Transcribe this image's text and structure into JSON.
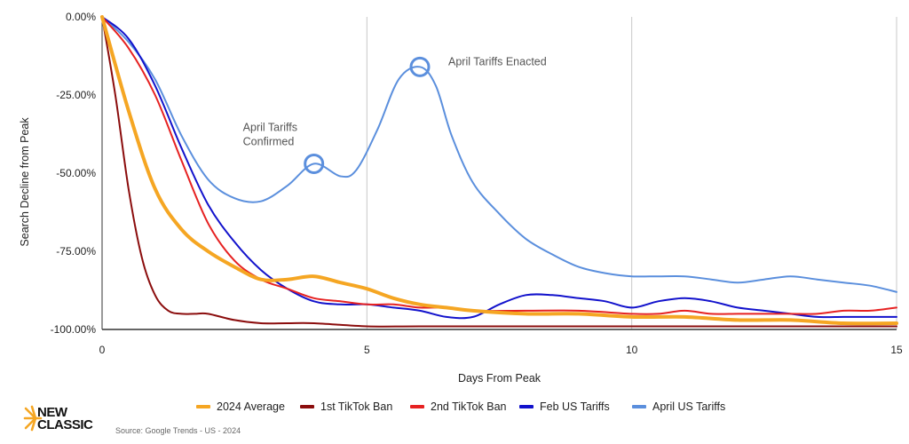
{
  "chart_data": {
    "type": "line",
    "title": "",
    "xlabel": "Days From Peak",
    "ylabel": "Search Decline from Peak",
    "xlim": [
      0,
      15
    ],
    "ylim": [
      -100,
      0
    ],
    "x_ticks": [
      0,
      5,
      10,
      15
    ],
    "y_ticks": [
      0,
      -25,
      -50,
      -75,
      -100
    ],
    "y_tick_labels": [
      "0.00%",
      "-25.00%",
      "-50.00%",
      "-75.00%",
      "-100.00%"
    ],
    "grid": "vertical",
    "legend": "bottom",
    "series": [
      {
        "name": "April US Tariffs",
        "color": "#5b8fdd",
        "width": 2,
        "points": [
          [
            0,
            0
          ],
          [
            0.5,
            -8
          ],
          [
            1,
            -20
          ],
          [
            1.5,
            -38
          ],
          [
            2,
            -52
          ],
          [
            2.5,
            -58
          ],
          [
            3,
            -59
          ],
          [
            3.5,
            -54
          ],
          [
            4,
            -47
          ],
          [
            4.5,
            -51
          ],
          [
            4.8,
            -49
          ],
          [
            5.2,
            -36
          ],
          [
            5.6,
            -20
          ],
          [
            6,
            -16
          ],
          [
            6.3,
            -22
          ],
          [
            6.6,
            -38
          ],
          [
            7,
            -53
          ],
          [
            7.5,
            -63
          ],
          [
            8,
            -71
          ],
          [
            8.5,
            -76
          ],
          [
            9,
            -80
          ],
          [
            9.5,
            -82
          ],
          [
            10,
            -83
          ],
          [
            10.5,
            -83
          ],
          [
            11,
            -83
          ],
          [
            11.5,
            -84
          ],
          [
            12,
            -85
          ],
          [
            12.5,
            -84
          ],
          [
            13,
            -83
          ],
          [
            13.5,
            -84
          ],
          [
            14,
            -85
          ],
          [
            14.5,
            -86
          ],
          [
            15,
            -88
          ]
        ]
      },
      {
        "name": "Feb US Tariffs",
        "color": "#1212cc",
        "width": 2,
        "points": [
          [
            0,
            0
          ],
          [
            0.5,
            -7
          ],
          [
            1,
            -22
          ],
          [
            1.5,
            -42
          ],
          [
            2,
            -60
          ],
          [
            2.5,
            -72
          ],
          [
            3,
            -81
          ],
          [
            3.5,
            -87
          ],
          [
            4,
            -91
          ],
          [
            4.5,
            -92
          ],
          [
            5,
            -92
          ],
          [
            5.5,
            -93
          ],
          [
            6,
            -94
          ],
          [
            6.5,
            -96
          ],
          [
            7,
            -96
          ],
          [
            7.5,
            -92
          ],
          [
            8,
            -89
          ],
          [
            8.5,
            -89
          ],
          [
            9,
            -90
          ],
          [
            9.5,
            -91
          ],
          [
            10,
            -93
          ],
          [
            10.5,
            -91
          ],
          [
            11,
            -90
          ],
          [
            11.5,
            -91
          ],
          [
            12,
            -93
          ],
          [
            12.5,
            -94
          ],
          [
            13,
            -95
          ],
          [
            13.5,
            -96
          ],
          [
            14,
            -96
          ],
          [
            14.5,
            -96
          ],
          [
            15,
            -96
          ]
        ]
      },
      {
        "name": "2nd TikTok Ban",
        "color": "#e62222",
        "width": 2,
        "points": [
          [
            0,
            0
          ],
          [
            0.5,
            -10
          ],
          [
            1,
            -25
          ],
          [
            1.5,
            -46
          ],
          [
            2,
            -66
          ],
          [
            2.5,
            -78
          ],
          [
            3,
            -84
          ],
          [
            3.5,
            -87
          ],
          [
            4,
            -90
          ],
          [
            4.5,
            -91
          ],
          [
            5,
            -92
          ],
          [
            5.5,
            -92
          ],
          [
            6,
            -93
          ],
          [
            6.5,
            -93
          ],
          [
            7,
            -94
          ],
          [
            8,
            -94
          ],
          [
            9,
            -94
          ],
          [
            10,
            -95
          ],
          [
            10.5,
            -95
          ],
          [
            11,
            -94
          ],
          [
            11.5,
            -95
          ],
          [
            12,
            -95
          ],
          [
            12.5,
            -95
          ],
          [
            13,
            -95
          ],
          [
            13.5,
            -95
          ],
          [
            14,
            -94
          ],
          [
            14.5,
            -94
          ],
          [
            15,
            -93
          ]
        ]
      },
      {
        "name": "1st TikTok Ban",
        "color": "#8b0d0d",
        "width": 2,
        "points": [
          [
            0,
            0
          ],
          [
            0.25,
            -25
          ],
          [
            0.5,
            -55
          ],
          [
            0.75,
            -77
          ],
          [
            1,
            -89
          ],
          [
            1.25,
            -94
          ],
          [
            1.5,
            -95
          ],
          [
            1.75,
            -95
          ],
          [
            2,
            -95
          ],
          [
            2.5,
            -97
          ],
          [
            3,
            -98
          ],
          [
            3.5,
            -98
          ],
          [
            4,
            -98
          ],
          [
            5,
            -99
          ],
          [
            6,
            -99
          ],
          [
            8,
            -99
          ],
          [
            10,
            -99
          ],
          [
            12,
            -99
          ],
          [
            15,
            -99
          ]
        ]
      },
      {
        "name": "2024 Average",
        "color": "#f5a623",
        "width": 4,
        "points": [
          [
            0,
            0
          ],
          [
            0.5,
            -30
          ],
          [
            1,
            -55
          ],
          [
            1.5,
            -68
          ],
          [
            2,
            -75
          ],
          [
            2.5,
            -80
          ],
          [
            3,
            -84
          ],
          [
            3.5,
            -84
          ],
          [
            4,
            -83
          ],
          [
            4.5,
            -85
          ],
          [
            5,
            -87
          ],
          [
            5.5,
            -90
          ],
          [
            6,
            -92
          ],
          [
            6.5,
            -93
          ],
          [
            7,
            -94
          ],
          [
            8,
            -95
          ],
          [
            9,
            -95
          ],
          [
            10,
            -96
          ],
          [
            11,
            -96
          ],
          [
            12,
            -97
          ],
          [
            13,
            -97
          ],
          [
            14,
            -98
          ],
          [
            15,
            -98
          ]
        ]
      }
    ],
    "legend_order": [
      "2024 Average",
      "1st TikTok Ban",
      "2nd TikTok Ban",
      "Feb US Tariffs",
      "April US Tariffs"
    ],
    "annotations": [
      {
        "lines": [
          "April Tariffs",
          "Confirmed"
        ],
        "x": 4,
        "y": -47
      },
      {
        "lines": [
          "April Tariffs Enacted"
        ],
        "x": 6,
        "y": -16
      }
    ]
  },
  "brand": {
    "line1": "NEW",
    "line2": "CLASSIC",
    "logo_color": "#f5a623"
  },
  "source": "Source: Google Trends - US - 2024"
}
